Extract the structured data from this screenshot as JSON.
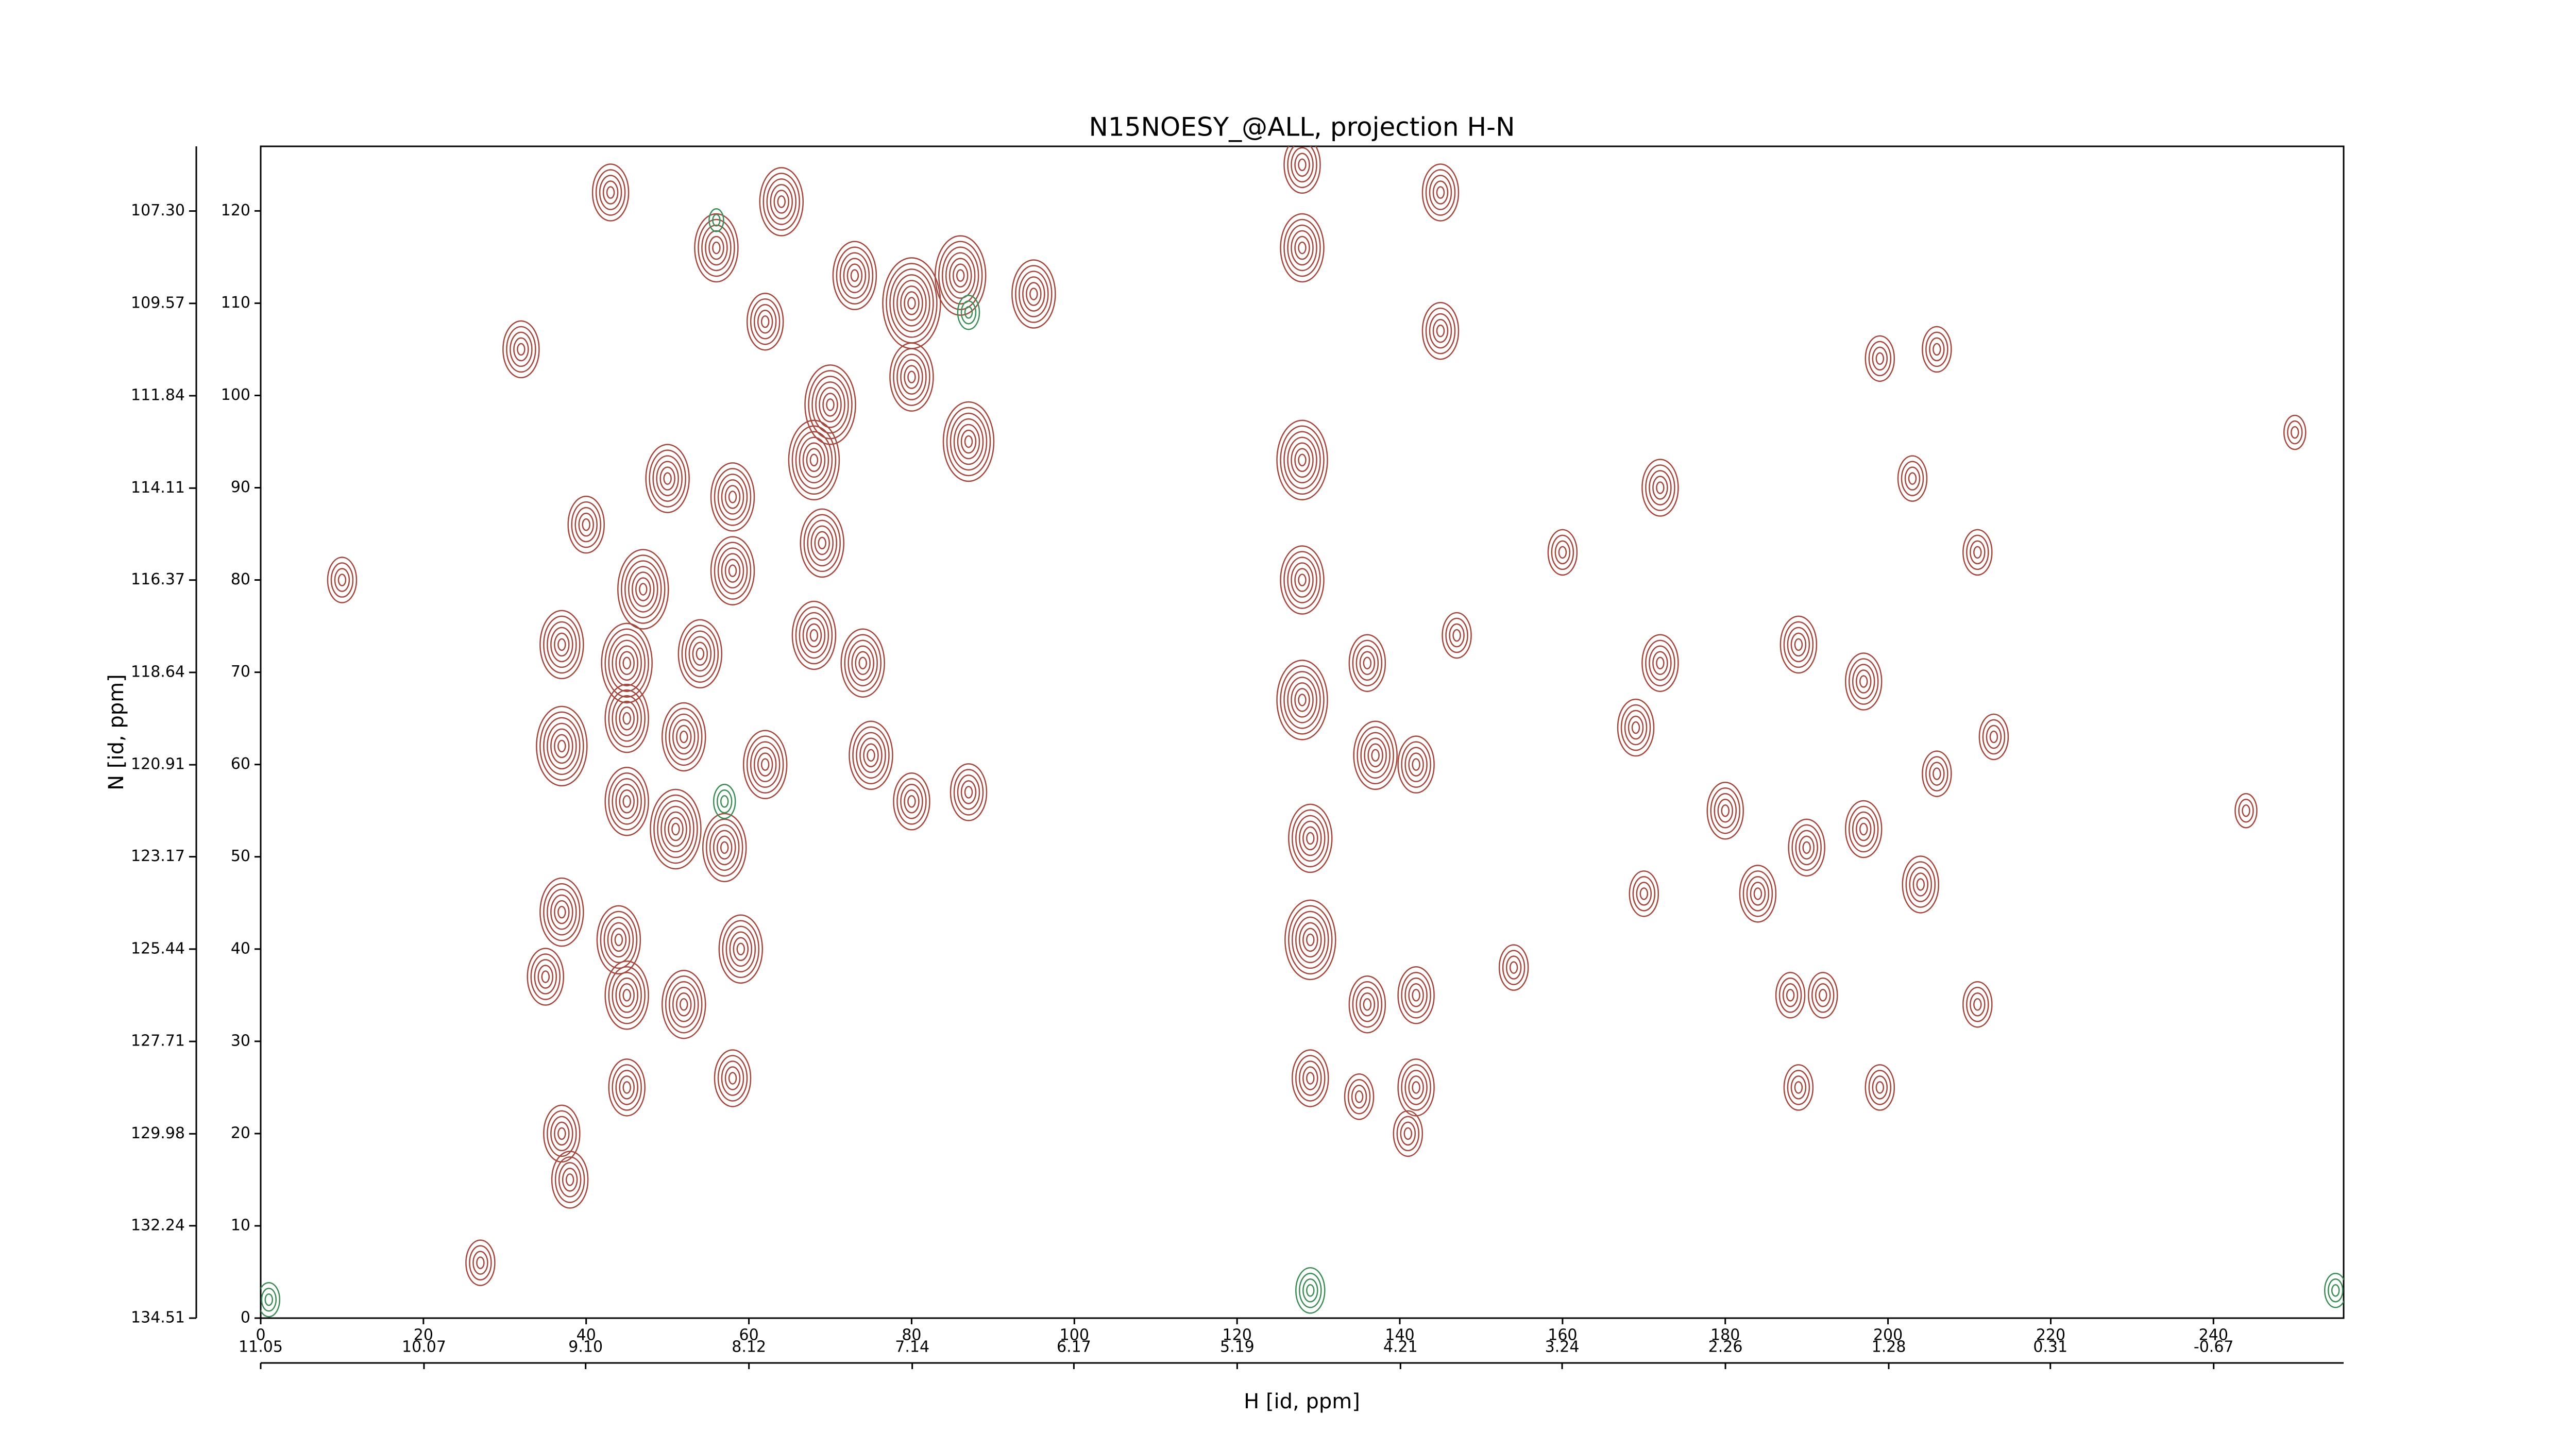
{
  "chart_data": {
    "type": "contour",
    "title": "N15NOESY_@ALL, projection H-N",
    "ylabel": "N [id, ppm]",
    "xlabel": "H [id, ppm]",
    "xlim": [
      0,
      256
    ],
    "ylim": [
      0,
      127
    ],
    "xticks": [
      0,
      20,
      40,
      60,
      80,
      100,
      120,
      140,
      160,
      180,
      200,
      220,
      240
    ],
    "yticks": [
      0,
      10,
      20,
      30,
      40,
      50,
      60,
      70,
      80,
      90,
      100,
      110,
      120
    ],
    "x2lim": [
      11.05,
      -1.45
    ],
    "x2ticks": [
      11.05,
      10.07,
      {
        "value": 9.1,
        "label": "9.10"
      },
      8.12,
      7.14,
      6.17,
      5.19,
      4.21,
      3.24,
      2.26,
      1.28,
      0.31,
      -0.67
    ],
    "y2lim": [
      134.51,
      105.71
    ],
    "y2ticks": [
      134.51,
      132.24,
      129.98,
      127.71,
      125.44,
      123.17,
      120.91,
      118.64,
      116.37,
      114.11,
      111.84,
      109.57,
      {
        "value": 107.3,
        "label": "107.30"
      }
    ],
    "series": [
      {
        "color": "#a5463c",
        "x": [
          64,
          56,
          32,
          43,
          80,
          73,
          86,
          95,
          62,
          70,
          68,
          80,
          87,
          50,
          58,
          40,
          69,
          58,
          47,
          10,
          37,
          45,
          54,
          68,
          74,
          37,
          45,
          52,
          62,
          75,
          80,
          87,
          45,
          57,
          51,
          37,
          44,
          52,
          59,
          35,
          45,
          58,
          45,
          37,
          38,
          27,
          128,
          128,
          145,
          145,
          128,
          128,
          136,
          128,
          137,
          142,
          129,
          129,
          136,
          142,
          129,
          135,
          142,
          141,
          154,
          147,
          160,
          169,
          172,
          172,
          180,
          170,
          184,
          189,
          190,
          197,
          197,
          206,
          203,
          211,
          204,
          189,
          199,
          211,
          206,
          199,
          250,
          244,
          188,
          213,
          192
        ],
        "y": [
          121,
          116,
          105,
          122,
          110,
          113,
          113,
          111,
          108,
          99,
          93,
          102,
          95,
          91,
          89,
          86,
          84,
          81,
          79,
          80,
          73,
          71,
          72,
          74,
          71,
          62,
          65,
          63,
          60,
          61,
          56,
          57,
          56,
          51,
          53,
          44,
          41,
          34,
          40,
          37,
          35,
          26,
          25,
          20,
          15,
          6,
          116,
          125,
          122,
          107,
          93,
          80,
          71,
          67,
          61,
          60,
          52,
          41,
          34,
          35,
          26,
          24,
          25,
          20,
          38,
          74,
          83,
          64,
          90,
          71,
          55,
          46,
          46,
          73,
          51,
          69,
          53,
          59,
          91,
          83,
          47,
          25,
          25,
          34,
          105,
          104,
          96,
          55,
          35,
          63,
          35
        ],
        "levels": [
          6,
          6,
          5,
          5,
          8,
          6,
          7,
          6,
          5,
          7,
          7,
          6,
          7,
          6,
          6,
          5,
          6,
          6,
          7,
          4,
          6,
          7,
          6,
          6,
          6,
          7,
          6,
          6,
          6,
          6,
          5,
          5,
          6,
          6,
          7,
          6,
          6,
          6,
          6,
          5,
          6,
          5,
          5,
          5,
          5,
          4,
          6,
          5,
          5,
          5,
          7,
          6,
          5,
          7,
          6,
          5,
          6,
          7,
          5,
          5,
          5,
          4,
          5,
          4,
          4,
          4,
          4,
          5,
          5,
          5,
          5,
          4,
          5,
          5,
          5,
          5,
          5,
          4,
          4,
          4,
          5,
          4,
          4,
          4,
          4,
          4,
          3,
          3,
          4,
          4,
          4
        ]
      },
      {
        "color": "#3c8c55",
        "x": [
          57,
          87,
          129,
          1,
          255,
          56
        ],
        "y": [
          56,
          109,
          3,
          2,
          3,
          119
        ],
        "levels": [
          3,
          3,
          4,
          3,
          3,
          2
        ]
      }
    ]
  }
}
